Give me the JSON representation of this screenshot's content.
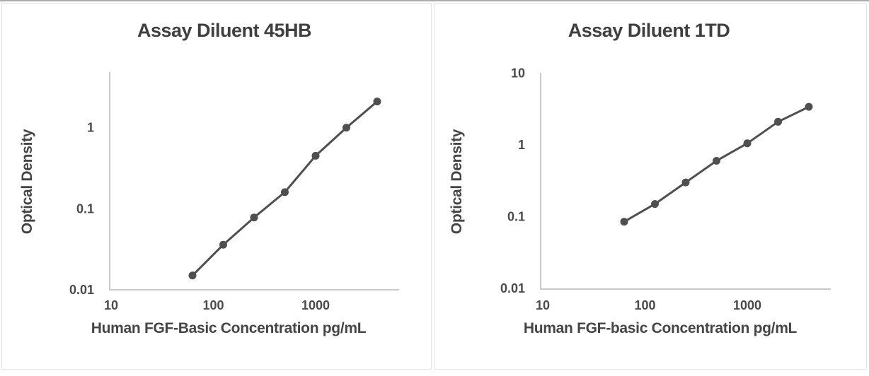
{
  "page": {
    "background_color": "#ffffff",
    "top_edge_color": "#ababab",
    "panel_border_color": "#e2e2e2",
    "axis_color": "#c9c9c9",
    "text_color": "#454545"
  },
  "chart_data": [
    {
      "type": "line",
      "title": "Assay Diluent 45HB",
      "xlabel": "Human FGF-Basic Concentration pg/mL",
      "ylabel": "Optical Density",
      "xscale": "log",
      "yscale": "log",
      "grid": false,
      "legend": null,
      "line_color": "#4f4f4f",
      "marker": "circle",
      "x": [
        62.5,
        125,
        250,
        500,
        1000,
        2000,
        4000
      ],
      "y": [
        0.015,
        0.036,
        0.078,
        0.16,
        0.45,
        1.0,
        2.1
      ],
      "x_ticks": [
        10,
        100,
        1000
      ],
      "y_ticks": [
        1,
        0.1,
        0.01
      ],
      "xlim": [
        10,
        6000
      ],
      "ylim": [
        0.01,
        4.8
      ]
    },
    {
      "type": "line",
      "title": "Assay Diluent 1TD",
      "xlabel": "Human FGF-basic Concentration pg/mL",
      "ylabel": "Optical Density",
      "xscale": "log",
      "yscale": "log",
      "grid": false,
      "legend": null,
      "line_color": "#4f4f4f",
      "marker": "circle",
      "x": [
        62.5,
        125,
        250,
        500,
        1000,
        2000,
        4000
      ],
      "y": [
        0.085,
        0.15,
        0.3,
        0.6,
        1.05,
        2.1,
        3.4
      ],
      "x_ticks": [
        10,
        100,
        1000
      ],
      "y_ticks": [
        10,
        1,
        0.1,
        0.01
      ],
      "xlim": [
        10,
        6000
      ],
      "ylim": [
        0.01,
        10
      ]
    }
  ]
}
